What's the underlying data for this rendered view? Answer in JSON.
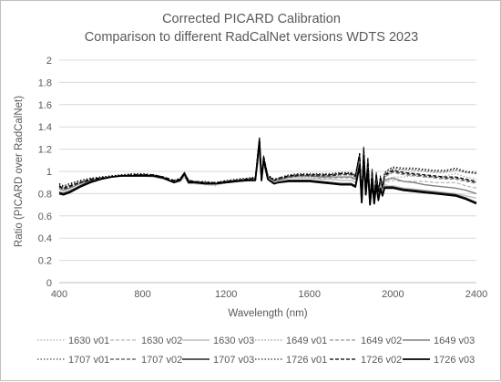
{
  "chart_data": {
    "type": "line",
    "title": "Corrected PICARD Calibration",
    "subtitle": "Comparison to different RadCalNet versions WDTS 2023",
    "xlabel": "Wavelength (nm)",
    "ylabel": "Ratio (PICARD over RadCalNet)",
    "xlim": [
      400,
      2400
    ],
    "ylim": [
      0,
      2
    ],
    "xticks": [
      "400",
      "800",
      "1200",
      "1600",
      "2000",
      "2400"
    ],
    "yticks": [
      "0",
      "0.2",
      "0.4",
      "0.6",
      "0.8",
      "1",
      "1.2",
      "1.4",
      "1.6",
      "1.8",
      "2"
    ],
    "grid": "horizontal",
    "legend_position": "bottom",
    "x": [
      400,
      420,
      450,
      500,
      550,
      600,
      650,
      700,
      750,
      800,
      850,
      900,
      950,
      980,
      1000,
      1020,
      1050,
      1100,
      1150,
      1200,
      1250,
      1300,
      1340,
      1360,
      1370,
      1380,
      1400,
      1430,
      1450,
      1500,
      1550,
      1600,
      1650,
      1700,
      1750,
      1800,
      1820,
      1840,
      1850,
      1860,
      1870,
      1880,
      1890,
      1900,
      1910,
      1920,
      1930,
      1940,
      1950,
      1960,
      1980,
      2000,
      2050,
      2100,
      2150,
      2200,
      2250,
      2300,
      2350,
      2400
    ],
    "series": [
      {
        "name": "1630 v01",
        "color": "#9a9a9a",
        "dash": "1.5 2",
        "width": 1,
        "values": [
          0.86,
          0.85,
          0.87,
          0.9,
          0.93,
          0.95,
          0.96,
          0.97,
          0.97,
          0.97,
          0.96,
          0.94,
          0.9,
          0.93,
          0.97,
          0.9,
          0.89,
          0.88,
          0.87,
          0.9,
          0.91,
          0.91,
          0.92,
          1.13,
          0.91,
          1.06,
          0.92,
          0.88,
          0.9,
          0.94,
          0.95,
          0.95,
          0.95,
          0.95,
          0.95,
          0.95,
          0.93,
          1.08,
          0.72,
          1.11,
          0.81,
          1.06,
          0.7,
          0.95,
          0.72,
          0.93,
          0.78,
          0.9,
          0.82,
          0.93,
          0.94,
          0.95,
          0.95,
          0.96,
          0.95,
          0.95,
          0.96,
          0.98,
          0.95,
          0.93
        ]
      },
      {
        "name": "1630 v02",
        "color": "#a6a6a6",
        "dash": "4 2",
        "width": 1,
        "values": [
          0.84,
          0.83,
          0.85,
          0.89,
          0.92,
          0.94,
          0.95,
          0.96,
          0.96,
          0.96,
          0.96,
          0.94,
          0.91,
          0.92,
          0.96,
          0.9,
          0.9,
          0.89,
          0.88,
          0.9,
          0.91,
          0.92,
          0.93,
          1.14,
          0.92,
          1.07,
          0.93,
          0.89,
          0.91,
          0.94,
          0.94,
          0.94,
          0.94,
          0.94,
          0.94,
          0.94,
          0.92,
          1.07,
          0.74,
          1.1,
          0.8,
          1.05,
          0.72,
          0.93,
          0.73,
          0.92,
          0.77,
          0.89,
          0.81,
          0.91,
          0.91,
          0.92,
          0.91,
          0.91,
          0.91,
          0.9,
          0.9,
          0.9,
          0.87,
          0.85
        ]
      },
      {
        "name": "1630 v03",
        "color": "#bfbfbf",
        "dash": "",
        "width": 1.4,
        "values": [
          0.82,
          0.81,
          0.83,
          0.87,
          0.91,
          0.93,
          0.95,
          0.96,
          0.96,
          0.96,
          0.95,
          0.93,
          0.9,
          0.91,
          0.95,
          0.89,
          0.89,
          0.88,
          0.88,
          0.9,
          0.91,
          0.92,
          0.92,
          1.15,
          0.92,
          1.07,
          0.93,
          0.89,
          0.91,
          0.94,
          0.94,
          0.94,
          0.93,
          0.93,
          0.92,
          0.92,
          0.9,
          1.05,
          0.74,
          1.1,
          0.8,
          1.03,
          0.72,
          0.92,
          0.73,
          0.9,
          0.77,
          0.87,
          0.8,
          0.88,
          0.87,
          0.87,
          0.85,
          0.84,
          0.83,
          0.82,
          0.81,
          0.8,
          0.78,
          0.76
        ]
      },
      {
        "name": "1649 v01",
        "color": "#7f7f7f",
        "dash": "1.5 2",
        "width": 1,
        "values": [
          0.89,
          0.87,
          0.89,
          0.91,
          0.93,
          0.95,
          0.96,
          0.97,
          0.97,
          0.98,
          0.97,
          0.95,
          0.91,
          0.93,
          0.98,
          0.91,
          0.9,
          0.9,
          0.89,
          0.91,
          0.92,
          0.93,
          0.94,
          1.2,
          0.93,
          1.1,
          0.95,
          0.91,
          0.93,
          0.96,
          0.97,
          0.97,
          0.97,
          0.97,
          0.98,
          0.98,
          0.96,
          1.15,
          0.76,
          1.19,
          0.85,
          1.1,
          0.74,
          1.0,
          0.76,
          0.97,
          0.82,
          0.94,
          0.86,
          0.97,
          1.0,
          1.02,
          1.01,
          1.01,
          1.0,
          0.99,
          0.99,
          1.01,
          0.99,
          0.98
        ]
      },
      {
        "name": "1649 v02",
        "color": "#7f7f7f",
        "dash": "4 2",
        "width": 1,
        "values": [
          0.87,
          0.85,
          0.87,
          0.9,
          0.92,
          0.94,
          0.95,
          0.96,
          0.97,
          0.97,
          0.97,
          0.95,
          0.91,
          0.93,
          0.97,
          0.91,
          0.9,
          0.9,
          0.89,
          0.91,
          0.92,
          0.93,
          0.94,
          1.21,
          0.93,
          1.11,
          0.95,
          0.91,
          0.92,
          0.95,
          0.96,
          0.96,
          0.96,
          0.96,
          0.97,
          0.97,
          0.95,
          1.14,
          0.77,
          1.18,
          0.84,
          1.09,
          0.75,
          0.98,
          0.76,
          0.96,
          0.81,
          0.93,
          0.85,
          0.95,
          0.97,
          0.99,
          0.97,
          0.96,
          0.95,
          0.94,
          0.93,
          0.93,
          0.91,
          0.89
        ]
      },
      {
        "name": "1649 v03",
        "color": "#808080",
        "dash": "",
        "width": 1.4,
        "values": [
          0.85,
          0.83,
          0.85,
          0.89,
          0.92,
          0.94,
          0.95,
          0.96,
          0.96,
          0.97,
          0.96,
          0.94,
          0.9,
          0.92,
          0.97,
          0.9,
          0.9,
          0.89,
          0.89,
          0.91,
          0.92,
          0.93,
          0.93,
          1.22,
          0.93,
          1.11,
          0.95,
          0.91,
          0.92,
          0.95,
          0.96,
          0.96,
          0.95,
          0.95,
          0.95,
          0.95,
          0.93,
          1.12,
          0.77,
          1.18,
          0.84,
          1.07,
          0.75,
          0.97,
          0.76,
          0.94,
          0.81,
          0.91,
          0.84,
          0.92,
          0.93,
          0.94,
          0.91,
          0.9,
          0.88,
          0.87,
          0.86,
          0.85,
          0.83,
          0.8
        ]
      },
      {
        "name": "1707 v01",
        "color": "#262626",
        "dash": "1.5 2",
        "width": 1,
        "values": [
          0.88,
          0.86,
          0.88,
          0.91,
          0.93,
          0.95,
          0.96,
          0.97,
          0.97,
          0.97,
          0.97,
          0.95,
          0.91,
          0.93,
          0.99,
          0.92,
          0.91,
          0.9,
          0.89,
          0.91,
          0.92,
          0.93,
          0.94,
          1.28,
          0.94,
          1.12,
          0.96,
          0.92,
          0.93,
          0.96,
          0.97,
          0.97,
          0.97,
          0.97,
          0.98,
          0.98,
          0.96,
          1.16,
          0.76,
          1.21,
          0.85,
          1.11,
          0.73,
          1.01,
          0.75,
          0.98,
          0.82,
          0.95,
          0.86,
          0.98,
          1.01,
          1.03,
          1.02,
          1.02,
          1.01,
          1.0,
          1.0,
          1.02,
          0.99,
          0.98
        ]
      },
      {
        "name": "1707 v02",
        "color": "#262626",
        "dash": "4 2",
        "width": 1,
        "values": [
          0.86,
          0.84,
          0.86,
          0.9,
          0.92,
          0.94,
          0.95,
          0.96,
          0.97,
          0.97,
          0.97,
          0.95,
          0.91,
          0.93,
          0.98,
          0.91,
          0.91,
          0.9,
          0.89,
          0.91,
          0.92,
          0.93,
          0.94,
          1.29,
          0.94,
          1.13,
          0.96,
          0.92,
          0.93,
          0.95,
          0.96,
          0.96,
          0.96,
          0.96,
          0.97,
          0.97,
          0.95,
          1.15,
          0.77,
          1.2,
          0.85,
          1.1,
          0.74,
          0.99,
          0.76,
          0.97,
          0.81,
          0.94,
          0.85,
          0.96,
          0.98,
          1.0,
          0.98,
          0.97,
          0.96,
          0.95,
          0.94,
          0.94,
          0.92,
          0.9
        ]
      },
      {
        "name": "1707 v03",
        "color": "#262626",
        "dash": "",
        "width": 1.6,
        "values": [
          0.81,
          0.8,
          0.82,
          0.87,
          0.91,
          0.93,
          0.95,
          0.96,
          0.96,
          0.96,
          0.96,
          0.94,
          0.9,
          0.92,
          0.98,
          0.9,
          0.9,
          0.89,
          0.89,
          0.9,
          0.91,
          0.92,
          0.92,
          1.27,
          0.92,
          1.1,
          0.93,
          0.89,
          0.9,
          0.92,
          0.92,
          0.92,
          0.91,
          0.9,
          0.89,
          0.89,
          0.87,
          1.06,
          0.72,
          1.12,
          0.79,
          1.02,
          0.7,
          0.91,
          0.71,
          0.89,
          0.75,
          0.85,
          0.79,
          0.86,
          0.86,
          0.86,
          0.84,
          0.83,
          0.82,
          0.81,
          0.8,
          0.79,
          0.76,
          0.72
        ]
      },
      {
        "name": "1726 v01",
        "color": "#000000",
        "dash": "1.5 2",
        "width": 1,
        "values": [
          0.89,
          0.87,
          0.89,
          0.92,
          0.94,
          0.95,
          0.96,
          0.97,
          0.98,
          0.98,
          0.97,
          0.95,
          0.92,
          0.94,
          0.99,
          0.92,
          0.91,
          0.91,
          0.9,
          0.92,
          0.93,
          0.94,
          0.95,
          1.3,
          0.95,
          1.14,
          0.97,
          0.93,
          0.94,
          0.97,
          0.98,
          0.98,
          0.98,
          0.98,
          0.99,
          0.99,
          0.97,
          1.17,
          0.77,
          1.22,
          0.86,
          1.12,
          0.74,
          1.02,
          0.76,
          0.99,
          0.83,
          0.96,
          0.87,
          0.99,
          1.02,
          1.04,
          1.03,
          1.03,
          1.02,
          1.01,
          1.01,
          1.03,
          1.0,
          0.99
        ]
      },
      {
        "name": "1726 v02",
        "color": "#000000",
        "dash": "4 2",
        "width": 1.2,
        "values": [
          0.87,
          0.85,
          0.87,
          0.9,
          0.93,
          0.94,
          0.95,
          0.96,
          0.97,
          0.97,
          0.97,
          0.95,
          0.92,
          0.93,
          0.99,
          0.92,
          0.91,
          0.9,
          0.9,
          0.91,
          0.92,
          0.93,
          0.94,
          1.3,
          0.94,
          1.14,
          0.96,
          0.92,
          0.94,
          0.96,
          0.97,
          0.97,
          0.97,
          0.97,
          0.98,
          0.98,
          0.96,
          1.16,
          0.78,
          1.21,
          0.85,
          1.11,
          0.75,
          1.0,
          0.77,
          0.98,
          0.82,
          0.95,
          0.86,
          0.97,
          0.99,
          1.01,
          0.99,
          0.98,
          0.97,
          0.96,
          0.95,
          0.95,
          0.93,
          0.91
        ]
      },
      {
        "name": "1726 v03",
        "color": "#000000",
        "dash": "",
        "width": 1.8,
        "values": [
          0.8,
          0.79,
          0.81,
          0.86,
          0.9,
          0.93,
          0.95,
          0.96,
          0.96,
          0.96,
          0.96,
          0.94,
          0.9,
          0.92,
          0.98,
          0.9,
          0.9,
          0.89,
          0.89,
          0.9,
          0.91,
          0.92,
          0.92,
          1.28,
          0.92,
          1.11,
          0.93,
          0.89,
          0.9,
          0.91,
          0.91,
          0.91,
          0.9,
          0.89,
          0.88,
          0.88,
          0.86,
          1.05,
          0.72,
          1.11,
          0.79,
          1.01,
          0.7,
          0.9,
          0.71,
          0.88,
          0.74,
          0.84,
          0.78,
          0.85,
          0.85,
          0.85,
          0.83,
          0.82,
          0.81,
          0.8,
          0.79,
          0.78,
          0.75,
          0.71
        ]
      }
    ]
  }
}
